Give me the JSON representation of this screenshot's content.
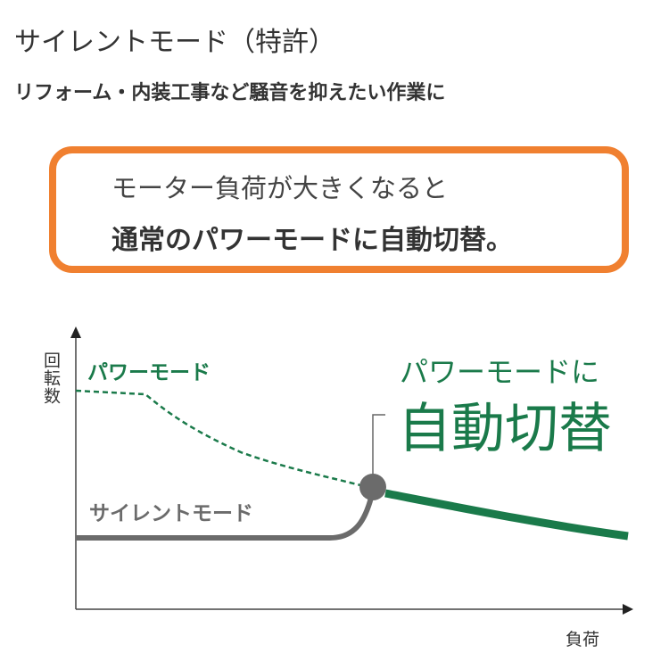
{
  "header": {
    "title": "サイレントモード（特許）",
    "subtitle": "リフォーム・内装工事など騒音を抑えたい作業に"
  },
  "callout": {
    "line1": "モーター負荷が大きくなると",
    "line2": "通常のパワーモードに自動切替。"
  },
  "diagram": {
    "y_axis_label": "回転数",
    "x_axis_label": "負荷",
    "power_mode_label": "パワーモード",
    "silent_mode_label": "サイレントモード",
    "switch_label_small": "パワーモードに",
    "switch_label_big": "自動切替",
    "colors": {
      "green": "#1a7a4a",
      "gray": "#6b6b6b",
      "orange": "#f08030"
    }
  }
}
